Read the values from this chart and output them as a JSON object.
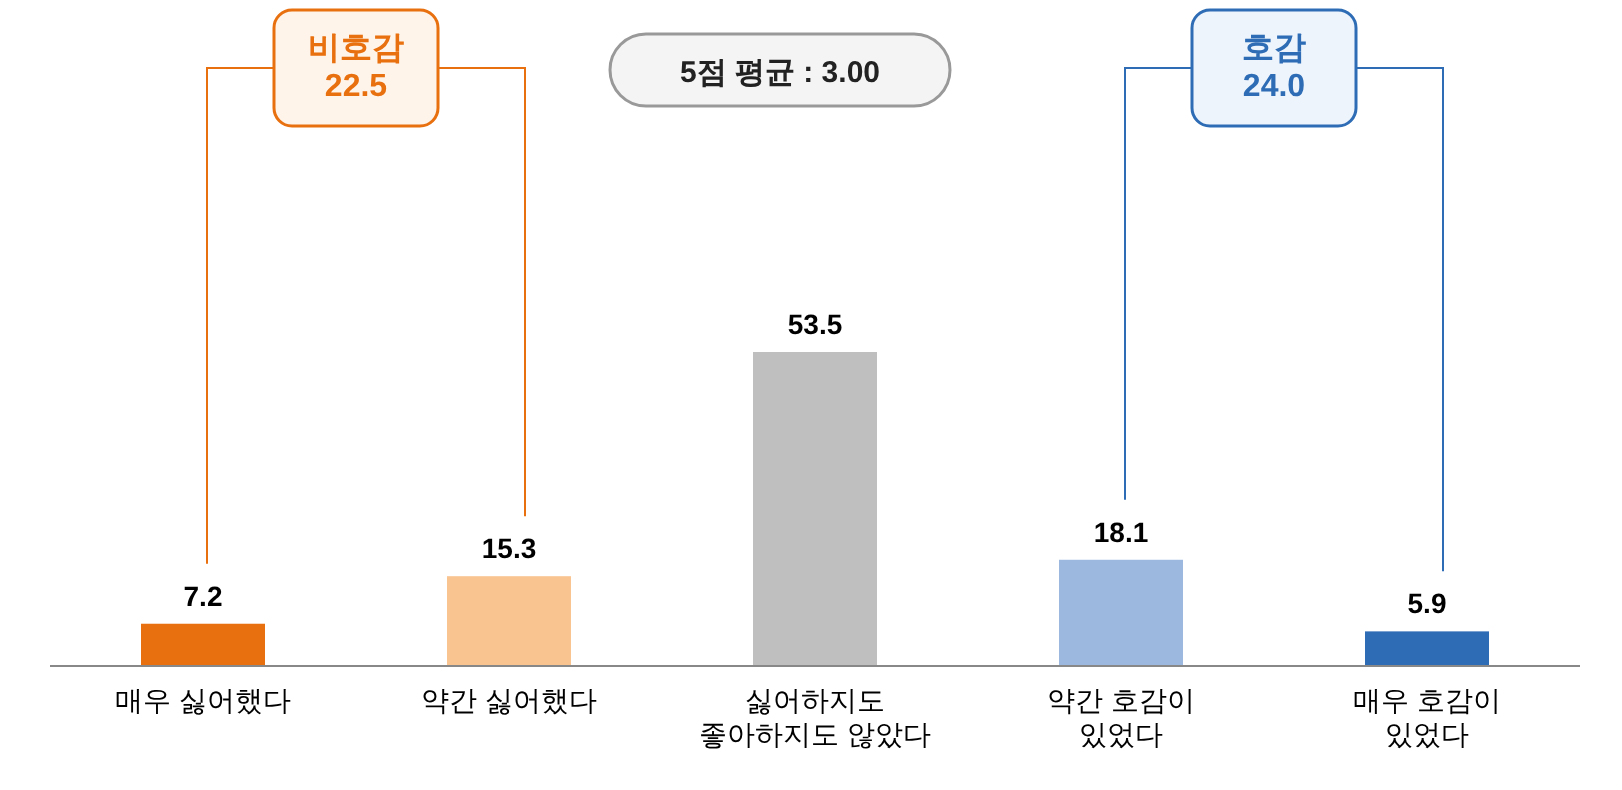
{
  "chart_data": {
    "type": "bar",
    "categories": [
      "매우 싫어했다",
      "약간 싫어했다",
      "싫어하지도\n좋아하지도 않았다",
      "약간 호감이\n있었다",
      "매우 호감이\n있었다"
    ],
    "values": [
      7.2,
      15.3,
      53.5,
      18.1,
      5.9
    ],
    "colors": [
      "#e8700f",
      "#f9c48f",
      "#bfbfbf",
      "#9db8de",
      "#2e6db5"
    ],
    "data_labels": true,
    "annotations": [
      "비호감\n22.5",
      "5점 평균 : 3.00",
      "호감\n24.0"
    ]
  }
}
